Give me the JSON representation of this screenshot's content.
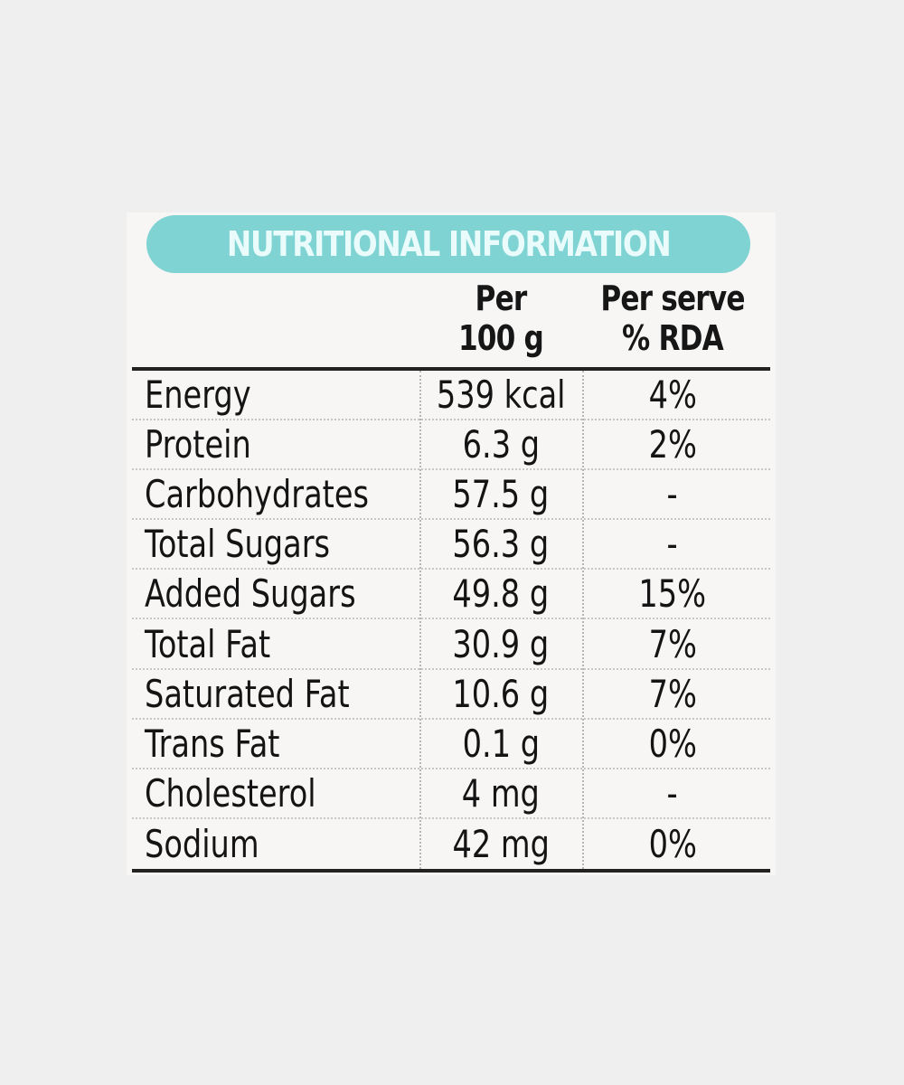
{
  "title": "NUTRITIONAL INFORMATION",
  "columns": {
    "per_100g": [
      "Per",
      "100 g"
    ],
    "per_serve": [
      "Per serve",
      "% RDA"
    ]
  },
  "rows": [
    {
      "nutrient": "Energy",
      "per_100g": "539 kcal",
      "rda": "4%"
    },
    {
      "nutrient": "Protein",
      "per_100g": "6.3 g",
      "rda": "2%"
    },
    {
      "nutrient": "Carbohydrates",
      "per_100g": "57.5 g",
      "rda": "-"
    },
    {
      "nutrient": "Total Sugars",
      "per_100g": "56.3 g",
      "rda": "-"
    },
    {
      "nutrient": "Added Sugars",
      "per_100g": "49.8 g",
      "rda": "15%"
    },
    {
      "nutrient": "Total Fat",
      "per_100g": "30.9 g",
      "rda": "7%"
    },
    {
      "nutrient": "Saturated Fat",
      "per_100g": "10.6 g",
      "rda": "7%"
    },
    {
      "nutrient": "Trans Fat",
      "per_100g": "0.1 g",
      "rda": "0%"
    },
    {
      "nutrient": "Cholesterol",
      "per_100g": "4 mg",
      "rda": "-"
    },
    {
      "nutrient": "Sodium",
      "per_100g": "42 mg",
      "rda": "0%"
    }
  ],
  "colors": {
    "banner": "#7fd3d3",
    "banner_text": "#e9fbfb",
    "text": "#141414",
    "background": "#efefef"
  }
}
